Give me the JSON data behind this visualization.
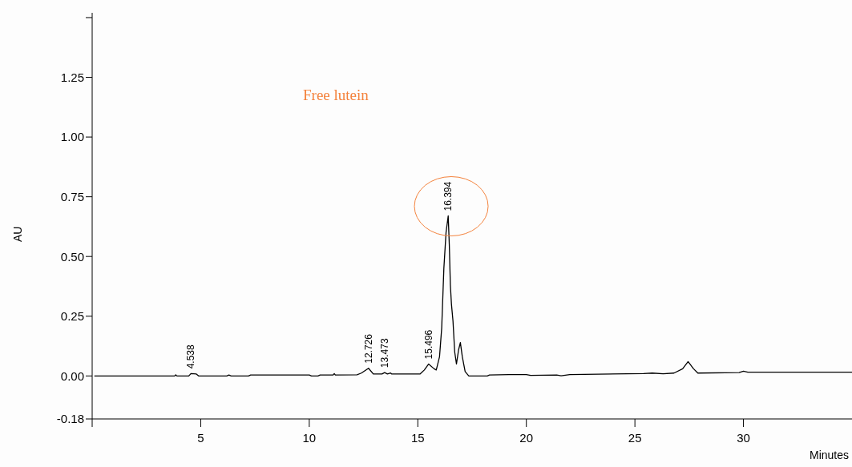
{
  "chart_data": {
    "type": "line",
    "xlabel": "Minutes",
    "ylabel": "AU",
    "annotations": [
      "Free lutein",
      {
        "text": "4.538",
        "x": 4.538,
        "y": 0.01
      },
      {
        "text": "12.726",
        "x": 12.726,
        "y": 0.032
      },
      {
        "text": "13.473",
        "x": 13.473,
        "y": 0.014
      },
      {
        "text": "15.496",
        "x": 15.496,
        "y": 0.05
      },
      {
        "text": "16.394",
        "x": 16.394,
        "y": 0.67
      }
    ],
    "series": [
      {
        "color": "#000000",
        "x": [
          0.1,
          3.8,
          3.85,
          3.9,
          4.45,
          4.55,
          4.8,
          4.9,
          6.2,
          6.3,
          6.4,
          7.2,
          7.3,
          10.0,
          10.1,
          10.4,
          10.5,
          11.1,
          11.15,
          11.2,
          12.2,
          12.4,
          12.73,
          12.95,
          13.35,
          13.47,
          13.6,
          13.75,
          13.8,
          15.1,
          15.3,
          15.5,
          15.75,
          15.85,
          16.0,
          16.1,
          16.2,
          16.3,
          16.4,
          16.45,
          16.5,
          16.55,
          16.62,
          16.7,
          16.78,
          16.88,
          16.96,
          17.05,
          17.18,
          17.35,
          18.2,
          18.3,
          19.2,
          20,
          20.2,
          21.4,
          21.6,
          22,
          25.4,
          25.8,
          26.3,
          26.8,
          27.2,
          27.45,
          27.7,
          27.9,
          29.8,
          30.0,
          30.2,
          35
        ],
        "values": [
          0,
          0,
          0.005,
          0,
          0,
          0.01,
          0.008,
          0,
          0,
          0.004,
          0,
          0,
          0.004,
          0.004,
          0,
          0,
          0.004,
          0.004,
          0.01,
          0.004,
          0.005,
          0.012,
          0.032,
          0.008,
          0.008,
          0.014,
          0.008,
          0.012,
          0.008,
          0.008,
          0.025,
          0.05,
          0.03,
          0.025,
          0.08,
          0.2,
          0.45,
          0.6,
          0.67,
          0.55,
          0.38,
          0.3,
          0.23,
          0.1,
          0.05,
          0.11,
          0.14,
          0.08,
          0.018,
          0,
          0,
          0.004,
          0.006,
          0.006,
          0.002,
          0.004,
          0.001,
          0.006,
          0.01,
          0.012,
          0.009,
          0.012,
          0.03,
          0.06,
          0.03,
          0.012,
          0.014,
          0.02,
          0.016,
          0.016
        ]
      }
    ],
    "xlim": [
      0,
      35
    ],
    "xticks": [
      {
        "value": 0,
        "label": null
      },
      5,
      10,
      15,
      20,
      25,
      30
    ],
    "ylim": [
      -0.18,
      1.52
    ],
    "yticks": [
      {
        "value": -0.18,
        "label": "-0.18"
      },
      {
        "value": 0,
        "label": "0.00"
      },
      {
        "value": 0.25,
        "label": "0.25"
      },
      {
        "value": 0.5,
        "label": "0.50"
      },
      {
        "value": 0.75,
        "label": "0.75"
      },
      {
        "value": 1,
        "label": "1.00"
      },
      {
        "value": 1.25,
        "label": "1.25"
      },
      {
        "value": 1.5,
        "label": null
      }
    ],
    "grid": false,
    "legend": false,
    "marker": "none",
    "line_style": "solid"
  }
}
